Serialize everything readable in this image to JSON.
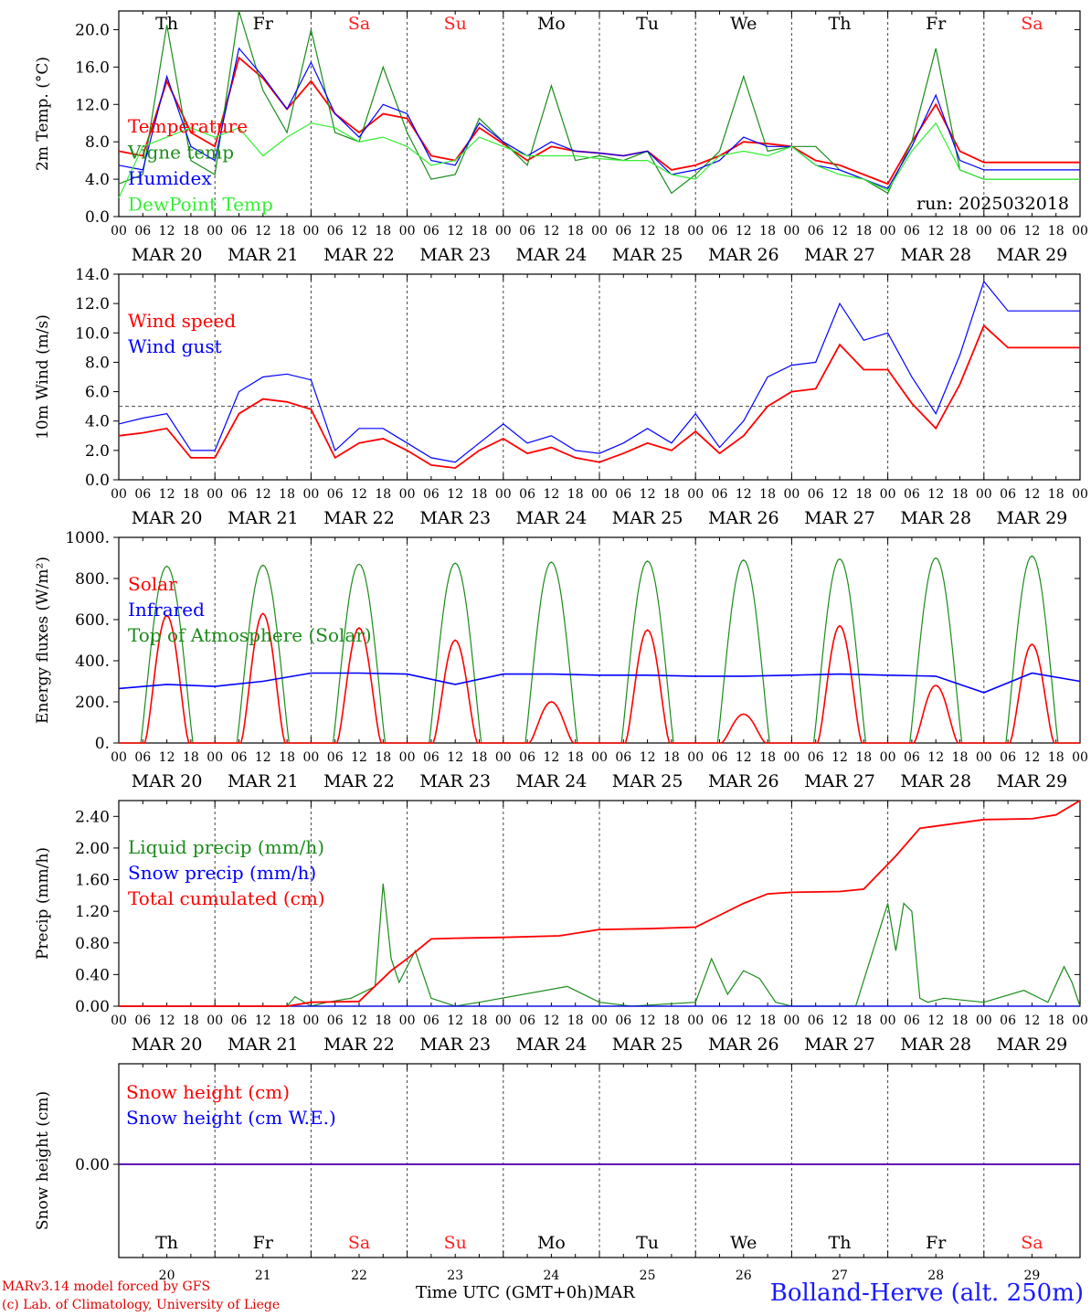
{
  "run_label": "run: 2025032018",
  "hour_ticks": [
    "00",
    "06",
    "12",
    "18"
  ],
  "date_labels": [
    "MAR 20",
    "MAR 21",
    "MAR 22",
    "MAR 23",
    "MAR 24",
    "MAR 25",
    "MAR 26",
    "MAR 27",
    "MAR 28",
    "MAR 29"
  ],
  "day_names": [
    "Th",
    "Fr",
    "Sa",
    "Su",
    "Mo",
    "Tu",
    "We",
    "Th",
    "Fr",
    "Sa"
  ],
  "day_numbers": [
    "20",
    "21",
    "22",
    "23",
    "24",
    "25",
    "26",
    "27",
    "28",
    "29"
  ],
  "weekend_days": [
    2,
    3,
    9
  ],
  "colors": {
    "red": "#ff0000",
    "green": "#1a8c1a",
    "blue": "#0000ff",
    "lightgreen": "#33ee33",
    "weekend": "#ff2020"
  },
  "chart_data": [
    {
      "type": "line",
      "ylabel": "2m Temp. (°C)",
      "ylim": [
        0,
        22
      ],
      "yticks": [
        "0.0",
        "4.0",
        "8.0",
        "12.0",
        "16.0",
        "20.0"
      ],
      "ytick_values": [
        0,
        4,
        8,
        12,
        16,
        20
      ],
      "x_hours": [
        0,
        6,
        12,
        18,
        24,
        30,
        36,
        42,
        48,
        54,
        60,
        66,
        72,
        78,
        84,
        90,
        96,
        102,
        108,
        114,
        120,
        126,
        132,
        138,
        144,
        150,
        156,
        162,
        168,
        174,
        180,
        186,
        192,
        198,
        204,
        210,
        216,
        222,
        228,
        234,
        240
      ],
      "series": [
        {
          "name": "Temperature",
          "color": "red",
          "values": [
            7.0,
            6.5,
            14.5,
            9.0,
            7.5,
            17.0,
            14.8,
            11.5,
            14.5,
            11.0,
            9.0,
            11.0,
            10.5,
            6.5,
            6.0,
            9.5,
            7.8,
            6.0,
            7.5,
            7.0,
            6.8,
            6.5,
            7.0,
            5.0,
            5.5,
            6.5,
            8.0,
            7.8,
            7.5,
            6.0,
            5.5,
            4.5,
            3.5,
            8.0,
            12.0,
            7.0,
            5.8,
            5.8,
            5.8,
            5.8,
            5.8
          ]
        },
        {
          "name": "Vigne temp",
          "color": "green",
          "values": [
            3.5,
            4.5,
            20.5,
            6.0,
            4.5,
            22.0,
            13.5,
            9.0,
            20.0,
            9.0,
            8.0,
            16.0,
            9.0,
            4.0,
            4.5,
            10.5,
            8.0,
            5.5,
            14.0,
            6.0,
            6.5,
            6.0,
            7.0,
            2.5,
            4.5,
            7.0,
            15.0,
            7.0,
            7.5,
            7.5,
            5.0,
            4.0,
            2.5,
            8.0,
            18.0,
            5.0,
            4.0,
            4.0,
            4.0,
            4.0,
            4.0
          ]
        },
        {
          "name": "Humidex",
          "color": "blue",
          "values": [
            5.5,
            5.0,
            15.0,
            7.5,
            6.0,
            18.0,
            15.0,
            11.5,
            16.5,
            11.0,
            8.5,
            12.0,
            11.0,
            6.0,
            5.5,
            10.0,
            8.0,
            6.5,
            8.0,
            7.0,
            6.8,
            6.5,
            7.0,
            4.5,
            5.0,
            6.0,
            8.5,
            7.5,
            7.5,
            5.5,
            5.0,
            4.0,
            3.0,
            7.5,
            13.0,
            6.0,
            5.0,
            5.0,
            5.0,
            5.0,
            5.0
          ]
        },
        {
          "name": "DewPoint Temp",
          "color": "lightgreen",
          "values": [
            2.0,
            7.5,
            8.5,
            9.5,
            8.5,
            9.5,
            6.5,
            8.5,
            10.0,
            9.5,
            8.0,
            8.5,
            7.5,
            5.5,
            6.0,
            8.5,
            7.5,
            6.5,
            6.5,
            6.5,
            6.2,
            6.0,
            6.0,
            4.5,
            4.0,
            6.5,
            7.0,
            6.5,
            7.5,
            5.5,
            4.5,
            4.0,
            2.8,
            7.0,
            10.0,
            5.0,
            4.0,
            4.0,
            4.0,
            4.0,
            4.0
          ]
        }
      ],
      "legend": "top-left"
    },
    {
      "type": "line",
      "ylabel": "10m Wind (m/s)",
      "ylim": [
        0,
        14
      ],
      "yticks": [
        "0.0",
        "2.0",
        "4.0",
        "6.0",
        "8.0",
        "10.0",
        "12.0",
        "14.0"
      ],
      "ytick_values": [
        0,
        2,
        4,
        6,
        8,
        10,
        12,
        14
      ],
      "reference_line": 5,
      "x_hours": [
        0,
        6,
        12,
        18,
        24,
        30,
        36,
        42,
        48,
        54,
        60,
        66,
        72,
        78,
        84,
        90,
        96,
        102,
        108,
        114,
        120,
        126,
        132,
        138,
        144,
        150,
        156,
        162,
        168,
        174,
        180,
        186,
        192,
        198,
        204,
        210,
        216,
        222,
        228,
        234,
        240
      ],
      "series": [
        {
          "name": "Wind speed",
          "color": "red",
          "values": [
            3.0,
            3.2,
            3.5,
            1.5,
            1.5,
            4.5,
            5.5,
            5.3,
            4.8,
            1.5,
            2.5,
            2.8,
            2.0,
            1.0,
            0.8,
            2.0,
            2.8,
            1.8,
            2.2,
            1.5,
            1.2,
            1.8,
            2.5,
            2.0,
            3.3,
            1.8,
            3.0,
            5.0,
            6.0,
            6.2,
            9.2,
            7.5,
            7.5,
            5.2,
            3.5,
            6.5,
            10.5,
            9.0,
            9.0,
            9.0,
            9.0
          ]
        },
        {
          "name": "Wind gust",
          "color": "blue",
          "values": [
            3.8,
            4.2,
            4.5,
            2.0,
            2.0,
            6.0,
            7.0,
            7.2,
            6.8,
            2.0,
            3.5,
            3.5,
            2.5,
            1.5,
            1.2,
            2.5,
            3.8,
            2.5,
            3.0,
            2.0,
            1.8,
            2.5,
            3.5,
            2.5,
            4.5,
            2.2,
            4.0,
            7.0,
            7.8,
            8.0,
            12.0,
            9.5,
            10.0,
            7.0,
            4.5,
            8.5,
            13.5,
            11.5,
            11.5,
            11.5,
            11.5
          ]
        }
      ],
      "legend": "top-left"
    },
    {
      "type": "line",
      "ylabel": "Energy fluxes (W/m²)",
      "ylim": [
        0,
        1000
      ],
      "yticks": [
        "0.",
        "200.",
        "400.",
        "600.",
        "800.",
        "1000."
      ],
      "ytick_values": [
        0,
        200,
        400,
        600,
        800,
        1000
      ],
      "solar_peaks": [
        620,
        630,
        560,
        500,
        200,
        550,
        140,
        570,
        280,
        480
      ],
      "toa_peaks": [
        860,
        865,
        870,
        875,
        880,
        885,
        890,
        895,
        900,
        910
      ],
      "series": [
        {
          "name": "Solar",
          "color": "red"
        },
        {
          "name": "Infrared",
          "color": "blue",
          "x_hours": [
            0,
            12,
            24,
            36,
            48,
            60,
            72,
            84,
            96,
            108,
            120,
            132,
            144,
            156,
            168,
            180,
            192,
            204,
            216,
            228,
            240
          ],
          "values": [
            265,
            285,
            275,
            300,
            340,
            340,
            335,
            285,
            335,
            335,
            330,
            330,
            325,
            325,
            330,
            335,
            330,
            325,
            245,
            340,
            300
          ]
        },
        {
          "name": "Top of Atmosphere (Solar)",
          "color": "green"
        }
      ],
      "legend": "top-left"
    },
    {
      "type": "line",
      "ylabel": "Precip (mm/h)",
      "ylim": [
        0,
        2.6
      ],
      "yticks": [
        "0.00",
        "0.40",
        "0.80",
        "1.20",
        "1.60",
        "2.00",
        "2.40"
      ],
      "ytick_values": [
        0,
        0.4,
        0.8,
        1.2,
        1.6,
        2.0,
        2.4
      ],
      "series": [
        {
          "name": "Liquid precip (mm/h)",
          "color": "green",
          "x_hours": [
            0,
            42,
            44,
            48,
            52,
            58,
            64,
            66,
            68,
            70,
            74,
            78,
            84,
            90,
            112,
            120,
            128,
            144,
            148,
            152,
            156,
            160,
            164,
            168,
            184,
            192,
            194,
            196,
            198,
            200,
            202,
            206,
            216,
            226,
            232,
            236,
            238,
            240
          ],
          "values": [
            0,
            0,
            0.12,
            0,
            0.05,
            0.1,
            0.25,
            1.55,
            0.6,
            0.3,
            0.7,
            0.1,
            0,
            0.05,
            0.25,
            0.05,
            0,
            0.05,
            0.6,
            0.15,
            0.45,
            0.35,
            0.05,
            0,
            0,
            1.3,
            0.7,
            1.3,
            1.2,
            0.1,
            0.05,
            0.1,
            0.05,
            0.2,
            0.05,
            0.5,
            0.3,
            0
          ]
        },
        {
          "name": "Snow precip (mm/h)",
          "color": "blue",
          "x_hours": [
            0,
            240
          ],
          "values": [
            0,
            0
          ]
        },
        {
          "name": "Total cumulated (cm)",
          "color": "red",
          "x_hours": [
            0,
            42,
            48,
            60,
            68,
            72,
            78,
            84,
            96,
            110,
            120,
            132,
            144,
            150,
            156,
            162,
            168,
            180,
            186,
            194,
            200,
            216,
            228,
            234,
            240
          ],
          "values": [
            0,
            0,
            0.05,
            0.06,
            0.45,
            0.6,
            0.85,
            0.86,
            0.87,
            0.89,
            0.97,
            0.98,
            1.0,
            1.15,
            1.3,
            1.42,
            1.44,
            1.45,
            1.48,
            1.9,
            2.25,
            2.36,
            2.37,
            2.42,
            2.6
          ]
        }
      ],
      "legend": "top-left"
    },
    {
      "type": "line",
      "ylabel": "Snow height (cm)",
      "yticks": [
        "0.00"
      ],
      "series": [
        {
          "name": "Snow height (cm)",
          "color": "red",
          "values": [
            0,
            0
          ]
        },
        {
          "name": "Snow height (cm W.E.)",
          "color": "blue",
          "values": [
            0,
            0
          ]
        }
      ],
      "legend": "top-left"
    }
  ],
  "footer": {
    "model_line": "MARv3.14 model forced by GFS",
    "copyright_line": "(c) Lab. of Climatology, University of Liege",
    "xlabel": "Time UTC (GMT+0h)",
    "month": "MAR",
    "station": "Bolland-Herve (alt. 250m)"
  }
}
